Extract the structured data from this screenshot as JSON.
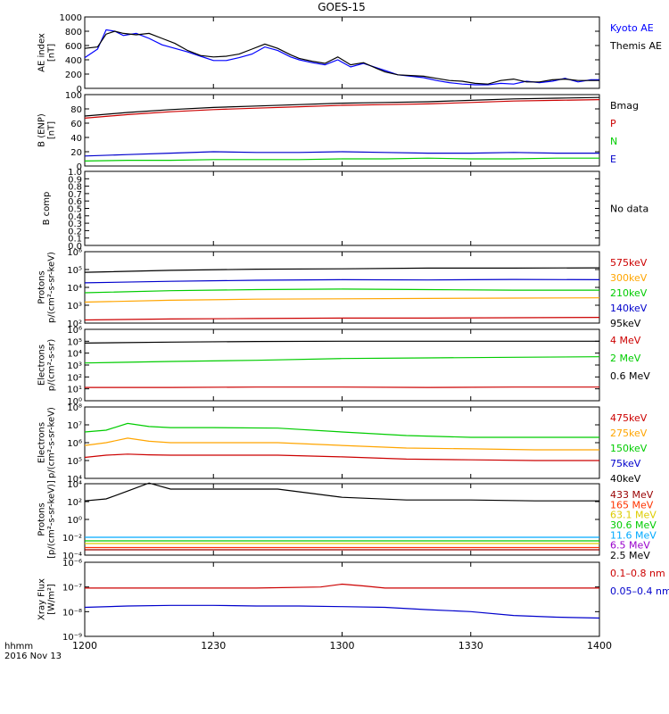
{
  "title": "GOES-15",
  "time_axis": {
    "label_line1": "hhmm",
    "label_line2": "2016 Nov 13",
    "ticks": [
      "1200",
      "1230",
      "1300",
      "1330",
      "1400"
    ],
    "tick_minutes": [
      0,
      30,
      60,
      90,
      120
    ],
    "range_minutes": [
      0,
      120
    ]
  },
  "chart_data": [
    {
      "id": "ae",
      "type": "line",
      "ylabel": "AE index\n[nT]",
      "ylim": [
        0,
        1000
      ],
      "yticks": [
        0,
        200,
        400,
        600,
        800,
        1000
      ],
      "ytick_labels": [
        "0",
        "200",
        "400",
        "600",
        "800",
        "1000"
      ],
      "series": [
        {
          "name": "Kyoto AE",
          "color": "#0000ff",
          "x": [
            0,
            3,
            5,
            7,
            9,
            12,
            15,
            18,
            21,
            24,
            27,
            30,
            33,
            36,
            39,
            42,
            45,
            48,
            50,
            53,
            56,
            59,
            62,
            65,
            68,
            70,
            73,
            76,
            79,
            82,
            85,
            88,
            91,
            94,
            97,
            100,
            103,
            106,
            109,
            112,
            115,
            118,
            120
          ],
          "y": [
            430,
            550,
            820,
            800,
            740,
            770,
            700,
            610,
            560,
            510,
            450,
            390,
            390,
            430,
            480,
            580,
            530,
            440,
            400,
            360,
            330,
            400,
            300,
            350,
            290,
            250,
            190,
            170,
            150,
            110,
            80,
            60,
            50,
            50,
            70,
            60,
            100,
            80,
            100,
            140,
            90,
            120,
            120
          ]
        },
        {
          "name": "Themis AE",
          "color": "#000000",
          "x": [
            0,
            3,
            5,
            7,
            9,
            12,
            15,
            18,
            21,
            24,
            27,
            30,
            33,
            36,
            39,
            42,
            45,
            48,
            50,
            53,
            56,
            59,
            62,
            65,
            68,
            70,
            73,
            76,
            79,
            82,
            85,
            88,
            91,
            94,
            97,
            100,
            103,
            106,
            109,
            112,
            115,
            118,
            120
          ],
          "y": [
            560,
            580,
            760,
            800,
            770,
            750,
            770,
            700,
            630,
            530,
            460,
            440,
            450,
            480,
            550,
            620,
            560,
            470,
            420,
            380,
            350,
            440,
            330,
            360,
            280,
            230,
            190,
            180,
            170,
            140,
            110,
            100,
            70,
            60,
            110,
            130,
            90,
            90,
            120,
            130,
            110,
            110,
            110
          ]
        }
      ]
    },
    {
      "id": "bfield",
      "type": "line",
      "ylabel": "B (ENP)\n[nT]",
      "ylim": [
        0,
        100
      ],
      "yticks": [
        0,
        20,
        40,
        60,
        80,
        100
      ],
      "ytick_labels": [
        "0",
        "20",
        "40",
        "60",
        "80",
        "100"
      ],
      "series": [
        {
          "name": "Bmag",
          "color": "#000000",
          "x": [
            0,
            10,
            20,
            30,
            40,
            50,
            60,
            70,
            80,
            90,
            100,
            110,
            120
          ],
          "y": [
            70,
            75,
            79,
            82,
            84,
            86,
            88,
            89,
            90,
            92,
            94,
            95,
            96
          ]
        },
        {
          "name": "P",
          "color": "#cc0000",
          "x": [
            0,
            10,
            20,
            30,
            40,
            50,
            60,
            70,
            80,
            90,
            100,
            110,
            120
          ],
          "y": [
            67,
            72,
            76,
            79,
            81,
            83,
            85,
            86,
            87,
            89,
            91,
            92,
            93
          ]
        },
        {
          "name": "N",
          "color": "#00cc00",
          "x": [
            0,
            10,
            20,
            30,
            40,
            50,
            60,
            70,
            80,
            90,
            100,
            110,
            120
          ],
          "y": [
            7,
            8,
            8,
            9,
            9,
            9,
            10,
            10,
            11,
            10,
            10,
            11,
            11
          ]
        },
        {
          "name": "E",
          "color": "#0000cc",
          "x": [
            0,
            10,
            20,
            30,
            40,
            50,
            60,
            70,
            80,
            90,
            100,
            110,
            120
          ],
          "y": [
            14,
            16,
            18,
            20,
            19,
            19,
            20,
            19,
            18,
            18,
            19,
            18,
            18
          ]
        }
      ]
    },
    {
      "id": "bcomp",
      "type": "line",
      "ylabel": "B comp",
      "ylim": [
        0,
        1
      ],
      "yticks": [
        0,
        0.1,
        0.2,
        0.3,
        0.4,
        0.5,
        0.6,
        0.7,
        0.8,
        0.9,
        1.0
      ],
      "ytick_labels": [
        "0.0",
        "0.1",
        "0.2",
        "0.3",
        "0.4",
        "0.5",
        "0.6",
        "0.7",
        "0.8",
        "0.9",
        "1.0"
      ],
      "no_data_text": "No data",
      "series": []
    },
    {
      "id": "protons_low",
      "type": "line",
      "scale": "log",
      "ylabel": "Protons\np/(cm²-s-sr-keV)",
      "ylim": [
        100,
        1000000
      ],
      "yticks": [
        100,
        1000,
        10000,
        100000,
        1000000
      ],
      "ytick_labels": [
        "10²",
        "10³",
        "10⁴",
        "10⁵",
        "10⁶"
      ],
      "series": [
        {
          "name": "575keV",
          "color": "#cc0000",
          "x": [
            0,
            20,
            40,
            60,
            80,
            100,
            120
          ],
          "y": [
            150,
            170,
            180,
            190,
            190,
            200,
            210
          ]
        },
        {
          "name": "300keV",
          "color": "#ffa500",
          "x": [
            0,
            20,
            40,
            60,
            80,
            100,
            120
          ],
          "y": [
            1500,
            1900,
            2200,
            2300,
            2400,
            2500,
            2600
          ]
        },
        {
          "name": "210keV",
          "color": "#00cc00",
          "x": [
            0,
            20,
            40,
            60,
            80,
            100,
            120
          ],
          "y": [
            5000,
            6500,
            7500,
            8000,
            7500,
            7000,
            7000
          ]
        },
        {
          "name": "140keV",
          "color": "#0000cc",
          "x": [
            0,
            20,
            40,
            60,
            80,
            100,
            120
          ],
          "y": [
            18000,
            22000,
            25000,
            27000,
            26000,
            28000,
            27000
          ]
        },
        {
          "name": "95keV",
          "color": "#000000",
          "x": [
            0,
            20,
            40,
            60,
            80,
            100,
            120
          ],
          "y": [
            70000,
            90000,
            105000,
            110000,
            120000,
            120000,
            125000
          ]
        }
      ]
    },
    {
      "id": "electrons_high",
      "type": "line",
      "scale": "log",
      "ylabel": "Electrons\np/(cm²-s-sr)",
      "ylim": [
        1,
        1000000
      ],
      "yticks": [
        1,
        10,
        100,
        1000,
        10000,
        100000,
        1000000
      ],
      "ytick_labels": [
        "10⁰",
        "10¹",
        "10²",
        "10³",
        "10⁴",
        "10⁵",
        "10⁶"
      ],
      "series": [
        {
          "name": "4 MeV",
          "color": "#cc0000",
          "x": [
            0,
            20,
            40,
            60,
            80,
            100,
            120
          ],
          "y": [
            13,
            13,
            14,
            14,
            13,
            14,
            14
          ]
        },
        {
          "name": "2 MeV",
          "color": "#00cc00",
          "x": [
            0,
            20,
            40,
            60,
            80,
            100,
            120
          ],
          "y": [
            1500,
            2000,
            2500,
            3500,
            4000,
            4500,
            5000
          ]
        },
        {
          "name": "0.6 MeV",
          "color": "#000000",
          "x": [
            0,
            20,
            40,
            60,
            80,
            100,
            120
          ],
          "y": [
            70000,
            85000,
            95000,
            100000,
            100000,
            100000,
            100000
          ]
        }
      ]
    },
    {
      "id": "electrons_low",
      "type": "line",
      "scale": "log",
      "ylabel": "Electrons\np/(cm²-s-sr-keV)",
      "ylim": [
        10000,
        100000000
      ],
      "yticks": [
        10000,
        100000,
        1000000,
        10000000,
        100000000
      ],
      "ytick_labels": [
        "10⁴",
        "10⁵",
        "10⁶",
        "10⁷",
        "10⁸"
      ],
      "series": [
        {
          "name": "475keV",
          "color": "#cc0000",
          "x": [
            0,
            5,
            10,
            15,
            20,
            30,
            45,
            60,
            75,
            90,
            105,
            120
          ],
          "y": [
            150000,
            200000,
            230000,
            210000,
            200000,
            200000,
            200000,
            160000,
            120000,
            110000,
            100000,
            100000
          ]
        },
        {
          "name": "275keV",
          "color": "#ffa500",
          "x": [
            0,
            5,
            10,
            15,
            20,
            30,
            45,
            60,
            75,
            90,
            105,
            120
          ],
          "y": [
            700000,
            1000000,
            1800000,
            1200000,
            1000000,
            1000000,
            1000000,
            700000,
            500000,
            450000,
            400000,
            400000
          ]
        },
        {
          "name": "150keV",
          "color": "#00cc00",
          "x": [
            0,
            5,
            10,
            15,
            20,
            30,
            45,
            60,
            75,
            90,
            105,
            120
          ],
          "y": [
            4000000,
            5000000,
            12000000,
            8000000,
            7000000,
            7000000,
            6500000,
            4000000,
            2500000,
            2000000,
            2000000,
            2000000
          ]
        },
        {
          "name": "75keV",
          "color": "#0000cc",
          "x": [],
          "y": []
        },
        {
          "name": "40keV",
          "color": "#000000",
          "x": [],
          "y": []
        }
      ]
    },
    {
      "id": "protons_high",
      "type": "line",
      "scale": "log",
      "ylabel": "Protons\n[p/(cm²-s-sr-keV)]",
      "ylim": [
        0.0001,
        10000
      ],
      "yticks": [
        0.0001,
        0.01,
        1,
        100,
        10000
      ],
      "ytick_labels": [
        "10⁻⁴",
        "10⁻²",
        "10⁰",
        "10²",
        "10⁴"
      ],
      "series": [
        {
          "name": "433 MeV",
          "color": "#990000",
          "x": [
            0,
            20,
            40,
            60,
            80,
            100,
            120
          ],
          "y": [
            0.0004,
            0.0004,
            0.0004,
            0.0004,
            0.0004,
            0.0004,
            0.0004
          ]
        },
        {
          "name": "165 MeV",
          "color": "#ff3300",
          "x": [
            0,
            20,
            40,
            60,
            80,
            100,
            120
          ],
          "y": [
            0.0007,
            0.0007,
            0.0007,
            0.0007,
            0.0007,
            0.0007,
            0.0007
          ]
        },
        {
          "name": "63.1 MeV",
          "color": "#ddcc00",
          "x": [
            0,
            20,
            40,
            60,
            80,
            100,
            120
          ],
          "y": [
            0.002,
            0.002,
            0.002,
            0.002,
            0.002,
            0.002,
            0.002
          ]
        },
        {
          "name": "30.6 MeV",
          "color": "#00cc00",
          "x": [
            0,
            20,
            40,
            60,
            80,
            100,
            120
          ],
          "y": [
            0.004,
            0.004,
            0.004,
            0.004,
            0.004,
            0.004,
            0.004
          ]
        },
        {
          "name": "11.6 MeV",
          "color": "#00aaff",
          "x": [
            0,
            20,
            40,
            60,
            80,
            100,
            120
          ],
          "y": [
            0.01,
            0.01,
            0.01,
            0.01,
            0.01,
            0.01,
            0.01
          ]
        },
        {
          "name": "6.5 MeV",
          "color": "#9900cc",
          "x": [],
          "y": []
        },
        {
          "name": "2.5 MeV",
          "color": "#000000",
          "x": [
            0,
            5,
            10,
            15,
            20,
            30,
            45,
            60,
            75,
            90,
            105,
            120
          ],
          "y": [
            120,
            200,
            1500,
            12000,
            2500,
            2500,
            2500,
            300,
            150,
            150,
            120,
            120
          ]
        }
      ]
    },
    {
      "id": "xray",
      "type": "line",
      "scale": "log",
      "ylabel": "Xray Flux\n[W/m²]",
      "ylim": [
        1e-09,
        1e-06
      ],
      "yticks": [
        1e-09,
        1e-08,
        1e-07,
        1e-06
      ],
      "ytick_labels": [
        "10⁻⁹",
        "10⁻⁸",
        "10⁻⁷",
        "10⁻⁶"
      ],
      "series": [
        {
          "name": "0.1–0.8 nm",
          "color": "#cc0000",
          "x": [
            0,
            20,
            40,
            55,
            60,
            65,
            70,
            80,
            100,
            120
          ],
          "y": [
            9e-08,
            9e-08,
            9e-08,
            1e-07,
            1.3e-07,
            1.1e-07,
            9e-08,
            9e-08,
            9e-08,
            9e-08
          ]
        },
        {
          "name": "0.05–0.4 nm",
          "color": "#0000cc",
          "x": [
            0,
            10,
            20,
            30,
            40,
            50,
            60,
            70,
            80,
            90,
            100,
            110,
            120
          ],
          "y": [
            1.5e-08,
            1.7e-08,
            1.8e-08,
            1.8e-08,
            1.7e-08,
            1.7e-08,
            1.6e-08,
            1.5e-08,
            1.2e-08,
            1e-08,
            7e-09,
            6e-09,
            5.5e-09
          ]
        }
      ]
    }
  ]
}
